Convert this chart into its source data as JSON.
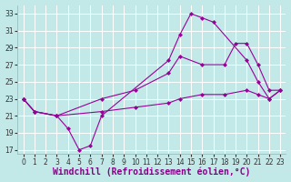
{
  "xlabel": "Windchill (Refroidissement éolien,°C)",
  "bg_color": "#c2e8e8",
  "grid_color": "#ffffff",
  "line_color": "#990099",
  "xlim": [
    -0.5,
    23.5
  ],
  "ylim": [
    16.5,
    34
  ],
  "xticks": [
    0,
    1,
    2,
    3,
    4,
    5,
    6,
    7,
    8,
    9,
    10,
    11,
    12,
    13,
    14,
    15,
    16,
    17,
    18,
    19,
    20,
    21,
    22,
    23
  ],
  "yticks": [
    17,
    19,
    21,
    23,
    25,
    27,
    29,
    31,
    33
  ],
  "line1_x": [
    0,
    1,
    3,
    4,
    5,
    6,
    7,
    13,
    14,
    15,
    16,
    17,
    20,
    21,
    22,
    23
  ],
  "line1_y": [
    23,
    21.5,
    21,
    19.5,
    17,
    17.5,
    21,
    27.5,
    30.5,
    33,
    32.5,
    32,
    27.5,
    25,
    23,
    24
  ],
  "line2_x": [
    0,
    1,
    3,
    7,
    10,
    13,
    14,
    16,
    18,
    19,
    20,
    21,
    22,
    23
  ],
  "line2_y": [
    23,
    21.5,
    21,
    23,
    24,
    26,
    28,
    27,
    27,
    29.5,
    29.5,
    27,
    24,
    24
  ],
  "line3_x": [
    0,
    1,
    3,
    7,
    10,
    13,
    14,
    16,
    18,
    20,
    21,
    22,
    23
  ],
  "line3_y": [
    23,
    21.5,
    21,
    21.5,
    22,
    22.5,
    23,
    23.5,
    23.5,
    24,
    23.5,
    23,
    24
  ],
  "xlabel_fontsize": 7,
  "tick_fontsize": 5.5,
  "marker": "D",
  "markersize": 2.0,
  "linewidth": 0.8
}
